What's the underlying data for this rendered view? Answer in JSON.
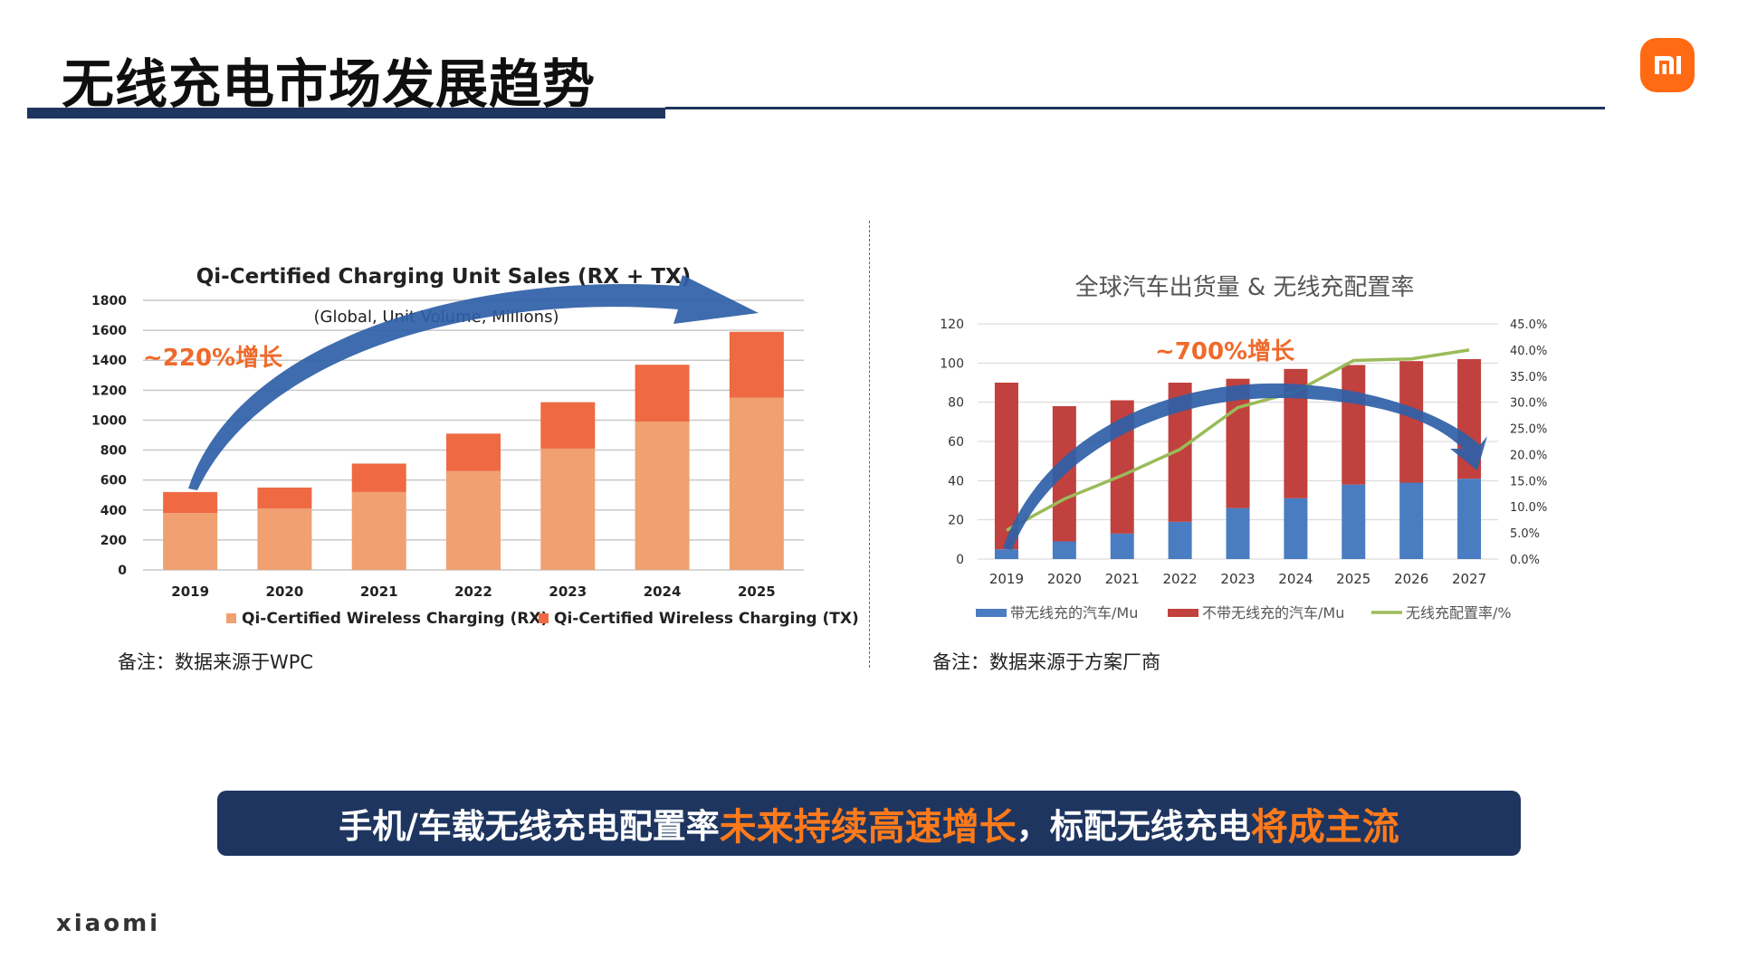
{
  "slide": {
    "title": "无线充电市场发展趋势",
    "brand": "xiaomi",
    "logo_text": "mi",
    "note_left": "备注：数据来源于WPC",
    "note_right": "备注：数据来源于方案厂商",
    "banner": {
      "part1": "手机/车载无线充电配置率",
      "part2": "未来持续高速增长",
      "part3": "，标配无线充电",
      "part4": "将成主流"
    }
  },
  "colors": {
    "navy": "#1e3560",
    "orange_accent": "#ff6a13",
    "rx": "#f0a071",
    "tx": "#ef6a43",
    "car_with": "#4a7cc2",
    "car_without": "#c0413d",
    "rate_line": "#9bbb59",
    "arrow": "#2f5fa7"
  },
  "chart_data": [
    {
      "type": "bar",
      "stacked": true,
      "title": "Qi-Certified Charging Unit Sales (RX + TX)",
      "subtitle": "(Global, Unit Volume, Millions)",
      "annotation": "~220%增长",
      "categories": [
        "2019",
        "2020",
        "2021",
        "2022",
        "2023",
        "2024",
        "2025"
      ],
      "series": [
        {
          "name": "Qi-Certified Wireless Charging (RX)",
          "values": [
            380,
            410,
            520,
            660,
            810,
            990,
            1150
          ]
        },
        {
          "name": "Qi-Certified Wireless Charging (TX)",
          "values": [
            140,
            140,
            190,
            250,
            310,
            380,
            440
          ]
        }
      ],
      "y_ticks": [
        "0",
        "200",
        "400",
        "600",
        "800",
        "1000",
        "1200",
        "1400",
        "1600",
        "1800"
      ],
      "ylim": [
        0,
        1800
      ],
      "grid": true,
      "legend": "bottom"
    },
    {
      "type": "bar",
      "stacked": true,
      "title": "全球汽车出货量 & 无线充配置率",
      "annotation": "~700%增长",
      "categories": [
        "2019",
        "2020",
        "2021",
        "2022",
        "2023",
        "2024",
        "2025",
        "2026",
        "2027"
      ],
      "series": [
        {
          "name": "带无线充的汽车/Mu",
          "values": [
            5,
            9,
            13,
            19,
            26,
            31,
            38,
            39,
            41
          ]
        },
        {
          "name": "不带无线充的汽车/Mu",
          "values": [
            85,
            69,
            68,
            71,
            66,
            66,
            61,
            62,
            61
          ]
        },
        {
          "name": "无线充配置率/%",
          "type": "line",
          "axis": "right",
          "values": [
            5.5,
            11.5,
            16,
            21,
            29,
            32,
            38,
            38.3,
            40
          ]
        }
      ],
      "y_ticks": [
        "0",
        "20",
        "40",
        "60",
        "80",
        "100",
        "120"
      ],
      "y2_ticks": [
        "0.0%",
        "5.0%",
        "10.0%",
        "15.0%",
        "20.0%",
        "25.0%",
        "30.0%",
        "35.0%",
        "40.0%",
        "45.0%"
      ],
      "ylim": [
        0,
        120
      ],
      "y2lim": [
        0,
        45
      ],
      "grid": true,
      "legend": "bottom"
    }
  ]
}
